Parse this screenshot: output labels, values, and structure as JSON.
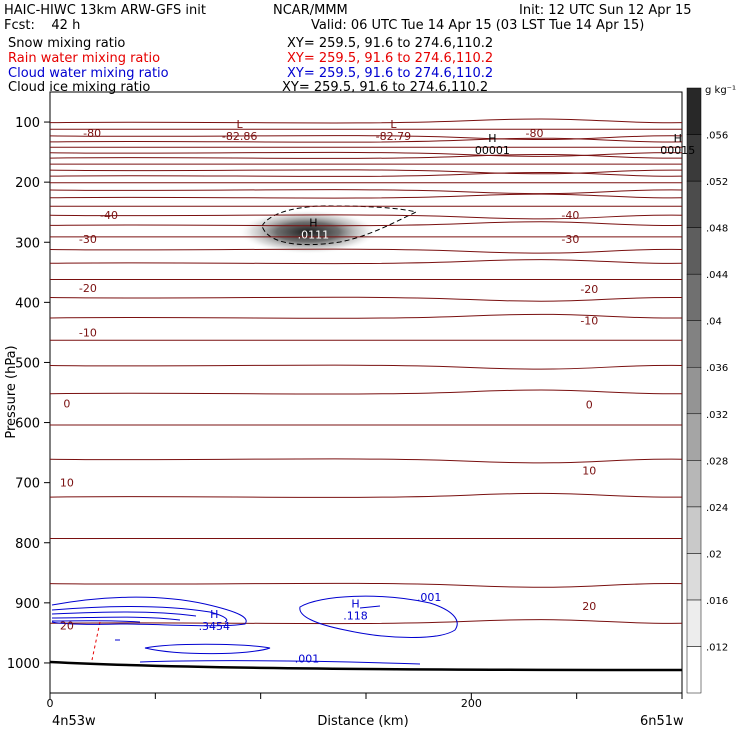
{
  "header": {
    "title": "HAIC-HIWC 13km ARW-GFS init",
    "org": "NCAR/MMM",
    "init": "Init: 12 UTC Sun 12 Apr 15",
    "fcst": "Fcst:    42 h",
    "valid": "Valid: 06 UTC Tue 14 Apr 15 (03 LST Tue 14 Apr 15)",
    "fields": [
      {
        "name": "Snow mixing ratio",
        "xy": "XY= 259.5, 91.6 to 274.6,110.2",
        "color": "#000000"
      },
      {
        "name": "Rain water mixing ratio",
        "xy": "XY= 259.5, 91.6 to 274.6,110.2",
        "color": "#e60000"
      },
      {
        "name": "Cloud water mixing ratio",
        "xy": "XY= 259.5, 91.6 to 274.6,110.2",
        "color": "#0000d0"
      },
      {
        "name": "Cloud ice mixing ratio",
        "xy": "XY= 259.5, 91.6 to 274.6,110.2",
        "color": "#000000"
      }
    ]
  },
  "chart_data": {
    "type": "contour",
    "ylabel": "Pressure (hPa)",
    "xlabel": "Distance (km)",
    "x_ticks": [
      0,
      200
    ],
    "x_range": [
      0,
      300
    ],
    "y_ticks": [
      100,
      200,
      300,
      400,
      500,
      600,
      700,
      800,
      900,
      1000
    ],
    "y_range": [
      1050,
      50
    ],
    "x_endpoints": {
      "left": "4n53w",
      "right": "6n51w"
    },
    "colorbar": {
      "unit": "g kg⁻¹",
      "ticks": [
        0.012,
        0.016,
        0.02,
        0.024,
        0.028,
        0.032,
        0.036,
        0.04,
        0.044,
        0.048,
        0.052,
        0.056
      ],
      "tick_labels": [
        ".012",
        ".016",
        ".02",
        ".024",
        ".028",
        ".032",
        ".036",
        ".04",
        ".044",
        ".048",
        ".052",
        ".056"
      ]
    },
    "temperature_contours": {
      "color": "#7a1010",
      "labels": [
        {
          "text": "-80",
          "x": 20,
          "p": 118
        },
        {
          "text": "-80",
          "x": 230,
          "p": 118
        },
        {
          "text": "-40",
          "x": 28,
          "p": 255
        },
        {
          "text": "-40",
          "x": 247,
          "p": 255
        },
        {
          "text": "-30",
          "x": 18,
          "p": 295
        },
        {
          "text": "-30",
          "x": 247,
          "p": 295
        },
        {
          "text": "-20",
          "x": 18,
          "p": 376
        },
        {
          "text": "-20",
          "x": 256,
          "p": 378
        },
        {
          "text": "-10",
          "x": 18,
          "p": 450
        },
        {
          "text": "-10",
          "x": 256,
          "p": 430
        },
        {
          "text": "0",
          "x": 8,
          "p": 568
        },
        {
          "text": "0",
          "x": 256,
          "p": 570
        },
        {
          "text": "10",
          "x": 8,
          "p": 700
        },
        {
          "text": "10",
          "x": 256,
          "p": 680
        },
        {
          "text": "20",
          "x": 8,
          "p": 938
        },
        {
          "text": "20",
          "x": 256,
          "p": 905
        }
      ],
      "extrema": [
        {
          "type": "L",
          "value": "-82.86",
          "x": 90,
          "p": 115
        },
        {
          "type": "L",
          "value": "-82.79",
          "x": 163,
          "p": 115
        },
        {
          "type": "H",
          "value": "00001",
          "x": 210,
          "p": 138
        },
        {
          "type": "H",
          "value": "00015",
          "x": 298,
          "p": 138
        }
      ]
    },
    "cloud_ice_contours": {
      "extrema": [
        {
          "type": "H",
          "value": ".0111",
          "x": 125,
          "p": 289
        }
      ],
      "max_value": 0.0111
    },
    "cloud_water_contours": {
      "color": "#0000d0",
      "labels": [
        {
          "text": ".001",
          "x": 180,
          "p": 890
        },
        {
          "text": ".001",
          "x": 122,
          "p": 993
        }
      ],
      "extrema": [
        {
          "type": "H",
          "value": ".3454",
          "x": 78,
          "p": 935
        },
        {
          "type": "H",
          "value": ".118",
          "x": 145,
          "p": 918
        }
      ]
    }
  }
}
